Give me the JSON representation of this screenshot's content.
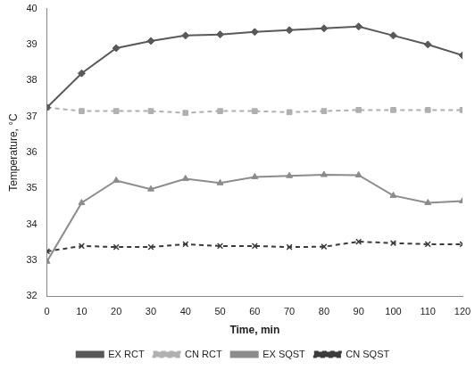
{
  "chart_data": {
    "type": "line",
    "x_label": "Time, min",
    "y_label": "Temperature, °C",
    "x": [
      0,
      10,
      20,
      30,
      40,
      50,
      60,
      70,
      80,
      90,
      100,
      110,
      120
    ],
    "xlim": [
      0,
      120
    ],
    "xticks": [
      0,
      10,
      20,
      30,
      40,
      50,
      60,
      70,
      80,
      90,
      100,
      110,
      120
    ],
    "ylim": [
      32,
      40
    ],
    "yticks": [
      32,
      33,
      34,
      35,
      36,
      37,
      38,
      39,
      40
    ],
    "grid": false,
    "legend": "bottom",
    "series": [
      {
        "name": "EX RCT",
        "color": "#595959",
        "marker": "diamond",
        "line_style": "solid",
        "values": [
          37.25,
          38.2,
          38.9,
          39.1,
          39.25,
          39.28,
          39.35,
          39.4,
          39.45,
          39.5,
          39.25,
          39.0,
          38.7
        ]
      },
      {
        "name": "CN RCT",
        "color": "#b0b0b0",
        "marker": "square",
        "line_style": "dashed",
        "values": [
          37.25,
          37.15,
          37.15,
          37.15,
          37.1,
          37.15,
          37.15,
          37.12,
          37.15,
          37.18,
          37.18,
          37.18,
          37.18
        ]
      },
      {
        "name": "EX SQST",
        "color": "#8c8c8c",
        "marker": "triangle",
        "line_style": "solid",
        "values": [
          32.97,
          34.6,
          35.22,
          34.98,
          35.27,
          35.15,
          35.32,
          35.35,
          35.38,
          35.37,
          34.8,
          34.6,
          34.65
        ]
      },
      {
        "name": "CN SQST",
        "color": "#3a3a3a",
        "marker": "x",
        "line_style": "dashed",
        "values": [
          33.25,
          33.4,
          33.37,
          33.37,
          33.45,
          33.4,
          33.4,
          33.37,
          33.38,
          33.52,
          33.48,
          33.45,
          33.45
        ]
      }
    ]
  }
}
